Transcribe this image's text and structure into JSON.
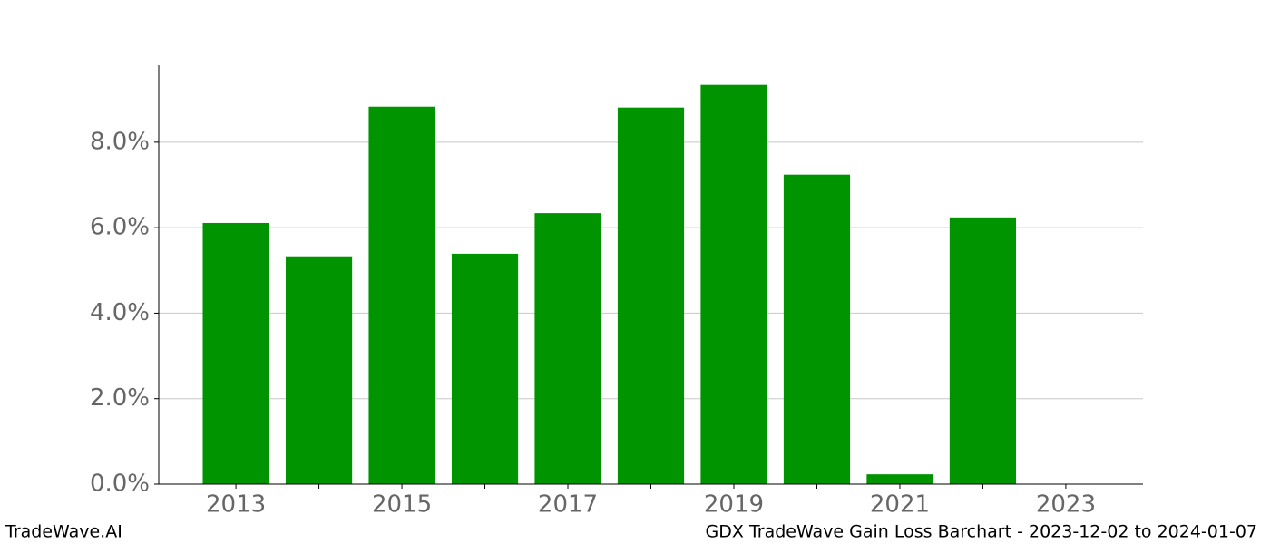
{
  "chart_data": {
    "type": "bar",
    "x": [
      2013,
      2014,
      2015,
      2016,
      2017,
      2018,
      2019,
      2020,
      2021,
      2022
    ],
    "values": [
      6.11,
      5.33,
      8.83,
      5.39,
      6.34,
      8.81,
      9.34,
      7.24,
      0.23,
      6.24
    ],
    "color": "#009400",
    "xlim": [
      2012.07,
      2023.93
    ],
    "xticks": [
      2013,
      2015,
      2017,
      2019,
      2021,
      2023
    ],
    "xminorticks": [
      2014,
      2016,
      2018,
      2020,
      2022
    ],
    "ylim": [
      0,
      9.8
    ],
    "yticks": [
      {
        "value": 0,
        "label": "0.0%"
      },
      {
        "value": 2,
        "label": "2.0%"
      },
      {
        "value": 4,
        "label": "4.0%"
      },
      {
        "value": 6,
        "label": "6.0%"
      },
      {
        "value": 8,
        "label": "8.0%"
      }
    ],
    "grid": true,
    "footer_left": "TradeWave.AI",
    "footer_right": "GDX TradeWave Gain Loss Barchart - 2023-12-02 to 2024-01-07"
  }
}
